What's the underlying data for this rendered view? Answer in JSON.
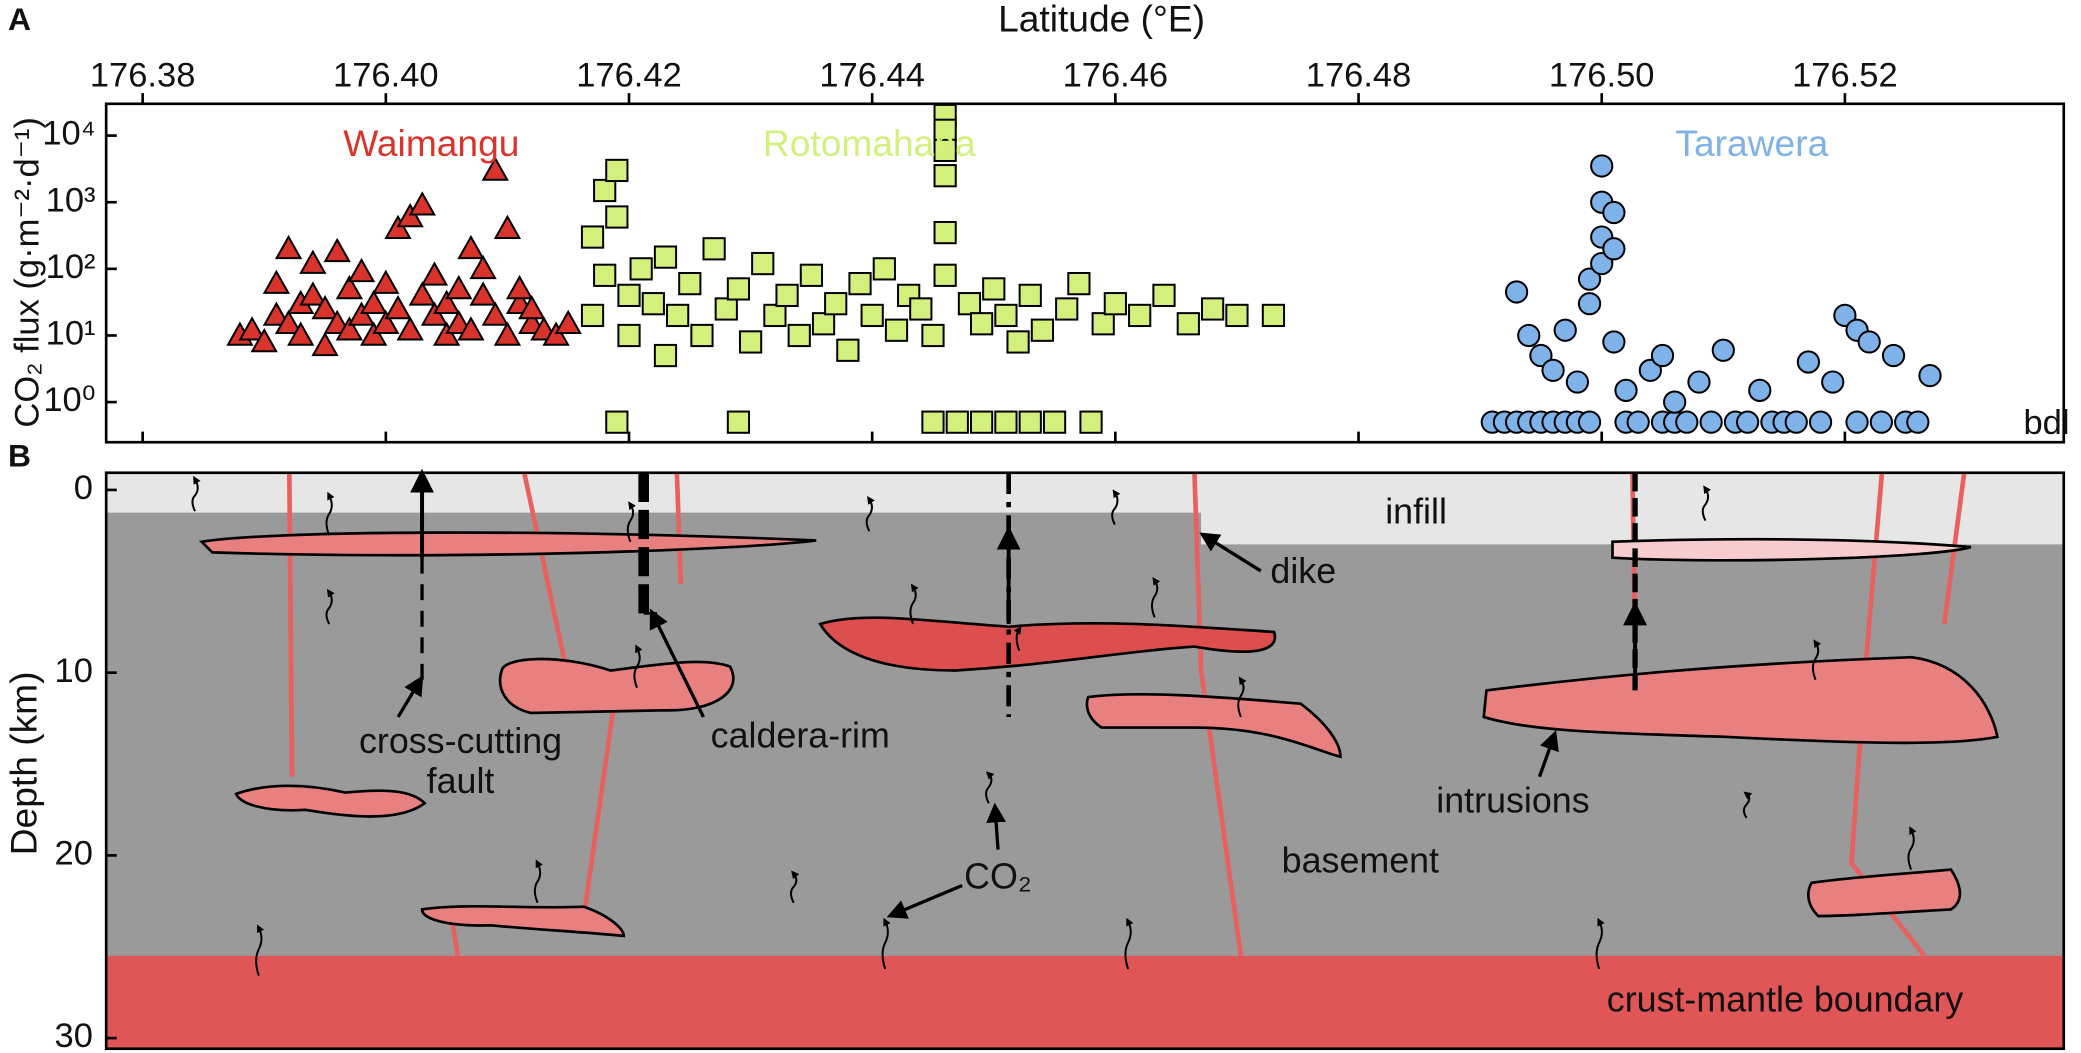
{
  "chart_data": [
    {
      "type": "scatter",
      "panel_label": "A",
      "xlabel": "Latitude (°E)",
      "ylabel": "CO₂ flux (g·m⁻²·d⁻¹)",
      "xlim": [
        176.377,
        176.538
      ],
      "ylim": [
        0.25,
        30000
      ],
      "log_y": true,
      "xticks": [
        176.38,
        {
          "value": 176.4,
          "label": "176.40"
        },
        176.42,
        176.44,
        176.46,
        176.48,
        {
          "value": 176.5,
          "label": "176.50"
        },
        176.52
      ],
      "yticks": [
        {
          "value": 1,
          "label": "10⁰"
        },
        {
          "value": 10,
          "label": "10¹"
        },
        {
          "value": 100,
          "label": "10²"
        },
        {
          "value": 1000,
          "label": "10³"
        },
        {
          "value": 10000,
          "label": "10⁴"
        }
      ],
      "annotations": [
        "bdl"
      ],
      "series": [
        {
          "name": "Waimangu",
          "color": "#d9342b",
          "marker": "triangle",
          "x": [
            176.388,
            176.389,
            176.39,
            176.391,
            176.391,
            176.392,
            176.392,
            176.393,
            176.393,
            176.394,
            176.394,
            176.395,
            176.395,
            176.396,
            176.396,
            176.397,
            176.397,
            176.398,
            176.398,
            176.399,
            176.399,
            176.4,
            176.4,
            176.401,
            176.401,
            176.402,
            176.402,
            176.403,
            176.403,
            176.404,
            176.404,
            176.405,
            176.405,
            176.406,
            176.406,
            176.407,
            176.407,
            176.408,
            176.408,
            176.409,
            176.409,
            176.41,
            176.41,
            176.411,
            176.411,
            176.412,
            176.412,
            176.413,
            176.414,
            176.415
          ],
          "values": [
            10,
            12,
            8,
            20,
            60,
            15,
            200,
            30,
            10,
            40,
            120,
            7,
            25,
            15,
            180,
            50,
            12,
            20,
            90,
            30,
            10,
            15,
            60,
            25,
            400,
            12,
            600,
            900,
            40,
            20,
            80,
            10,
            30,
            15,
            50,
            200,
            12,
            40,
            100,
            3000,
            20,
            10,
            400,
            30,
            50,
            15,
            25,
            12,
            10,
            15
          ]
        },
        {
          "name": "Rotomahana",
          "color": "#d3ef7c",
          "marker": "square",
          "x": [
            176.417,
            176.417,
            176.418,
            176.418,
            176.419,
            176.419,
            176.419,
            176.42,
            176.42,
            176.421,
            176.422,
            176.423,
            176.423,
            176.424,
            176.425,
            176.426,
            176.427,
            176.428,
            176.429,
            176.429,
            176.43,
            176.431,
            176.432,
            176.433,
            176.434,
            176.435,
            176.436,
            176.437,
            176.438,
            176.439,
            176.44,
            176.441,
            176.442,
            176.443,
            176.444,
            176.445,
            176.445,
            176.446,
            176.446,
            176.446,
            176.446,
            176.446,
            176.446,
            176.447,
            176.448,
            176.449,
            176.449,
            176.45,
            176.451,
            176.451,
            176.452,
            176.453,
            176.453,
            176.454,
            176.455,
            176.456,
            176.457,
            176.458,
            176.459,
            176.46,
            176.462,
            176.464,
            176.466,
            176.468,
            176.47,
            176.473
          ],
          "values": [
            20,
            300,
            1500,
            80,
            3000,
            600,
            0.5,
            40,
            10,
            100,
            30,
            5,
            150,
            20,
            60,
            10,
            200,
            25,
            0.5,
            50,
            8,
            120,
            20,
            40,
            10,
            80,
            15,
            30,
            6,
            60,
            20,
            100,
            12,
            40,
            25,
            0.5,
            10,
            20000,
            12000,
            6000,
            2500,
            350,
            80,
            0.5,
            30,
            0.5,
            15,
            50,
            0.5,
            20,
            8,
            0.5,
            40,
            12,
            0.5,
            25,
            60,
            0.5,
            15,
            30,
            20,
            40,
            15,
            25,
            20,
            20
          ]
        },
        {
          "name": "Tarawera",
          "color": "#7fb2e8",
          "marker": "circle",
          "x": [
            176.491,
            176.492,
            176.493,
            176.493,
            176.494,
            176.494,
            176.495,
            176.495,
            176.496,
            176.496,
            176.497,
            176.497,
            176.498,
            176.498,
            176.499,
            176.499,
            176.499,
            176.5,
            176.5,
            176.5,
            176.5,
            176.501,
            176.501,
            176.501,
            176.502,
            176.502,
            176.503,
            176.504,
            176.505,
            176.505,
            176.506,
            176.506,
            176.507,
            176.508,
            176.509,
            176.51,
            176.511,
            176.512,
            176.513,
            176.514,
            176.515,
            176.516,
            176.517,
            176.518,
            176.519,
            176.52,
            176.521,
            176.521,
            176.522,
            176.523,
            176.524,
            176.525,
            176.526,
            176.527
          ],
          "values": [
            0.5,
            0.5,
            0.5,
            45,
            0.5,
            10,
            0.5,
            5,
            0.5,
            3,
            0.5,
            12,
            0.5,
            2,
            0.5,
            30,
            70,
            120,
            300,
            1000,
            3500,
            700,
            200,
            8,
            0.5,
            1.5,
            0.5,
            3,
            0.5,
            5,
            0.5,
            1,
            0.5,
            2,
            0.5,
            6,
            0.5,
            0.5,
            1.5,
            0.5,
            0.5,
            0.5,
            4,
            0.5,
            2,
            20,
            12,
            0.5,
            8,
            0.5,
            5,
            0.5,
            0.5,
            2.5
          ]
        }
      ]
    },
    {
      "type": "diagram",
      "panel_label": "B",
      "ylabel": "Depth (km)",
      "ylim": [
        -0.94,
        30.58
      ],
      "y_direction": "down",
      "yticks": [
        0,
        10,
        20,
        30
      ],
      "labels": [
        "infill",
        "dike",
        "cross-cutting",
        "fault",
        "caldera-rim",
        "intrusions",
        "basement",
        "CO₂",
        "crust-mantle boundary"
      ]
    }
  ]
}
